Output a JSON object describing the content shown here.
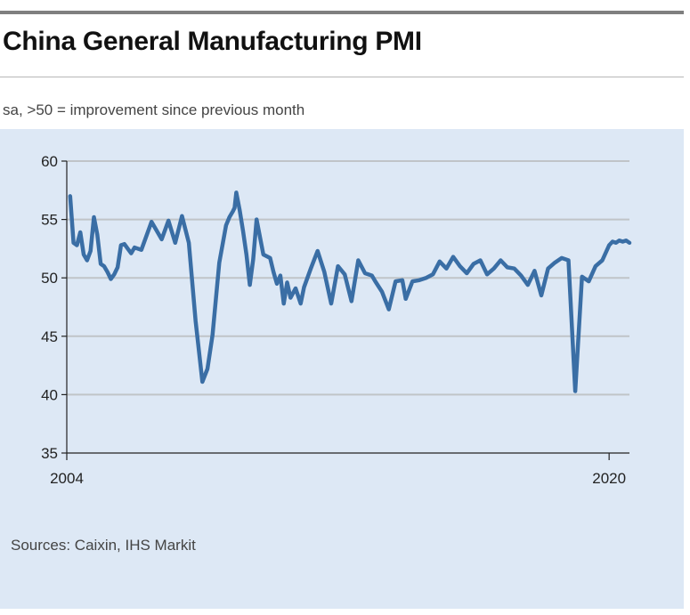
{
  "header": {
    "title": "China General Manufacturing PMI",
    "subtitle": "sa, >50 = improvement since previous month"
  },
  "footer": {
    "source": "Sources: Caixin, IHS Markit"
  },
  "colors": {
    "line": "#3a6ea5",
    "panel": "#dde8f5",
    "grid": "#c0c4c8",
    "axis": "#222222"
  },
  "chart_data": {
    "type": "line",
    "title": "China General Manufacturing PMI",
    "subtitle": "sa, >50 = improvement since previous month",
    "xlabel": "",
    "ylabel": "",
    "ylim": [
      35,
      60
    ],
    "yticks": [
      "60",
      "55",
      "50",
      "45",
      "40",
      "35"
    ],
    "ytick_values": [
      60,
      55,
      50,
      45,
      40,
      35
    ],
    "xtick_labels": [
      "2004",
      "2020"
    ],
    "xtick_values": [
      2004,
      2020
    ],
    "xlim": [
      2004,
      2020.6
    ],
    "grid": true,
    "series": [
      {
        "name": "China General Manufacturing PMI",
        "x": [
          2004.1,
          2004.2,
          2004.3,
          2004.4,
          2004.5,
          2004.6,
          2004.7,
          2004.8,
          2004.9,
          2005.0,
          2005.1,
          2005.2,
          2005.3,
          2005.4,
          2005.5,
          2005.6,
          2005.7,
          2005.8,
          2005.9,
          2006.0,
          2006.2,
          2006.5,
          2006.8,
          2007.0,
          2007.2,
          2007.4,
          2007.6,
          2007.8,
          2008.0,
          2008.15,
          2008.3,
          2008.5,
          2008.7,
          2008.8,
          2008.9,
          2008.95,
          2009.0,
          2009.1,
          2009.2,
          2009.3,
          2009.4,
          2009.5,
          2009.6,
          2009.8,
          2010.0,
          2010.1,
          2010.2,
          2010.3,
          2010.4,
          2010.5,
          2010.6,
          2010.75,
          2010.9,
          2011.0,
          2011.2,
          2011.4,
          2011.6,
          2011.8,
          2012.0,
          2012.2,
          2012.4,
          2012.6,
          2012.8,
          2013.0,
          2013.1,
          2013.3,
          2013.5,
          2013.7,
          2013.9,
          2014.0,
          2014.2,
          2014.4,
          2014.6,
          2014.8,
          2015.0,
          2015.2,
          2015.4,
          2015.6,
          2015.8,
          2016.0,
          2016.2,
          2016.4,
          2016.6,
          2016.8,
          2017.0,
          2017.2,
          2017.4,
          2017.6,
          2017.8,
          2018.0,
          2018.2,
          2018.4,
          2018.6,
          2018.8,
          2019.0,
          2019.2,
          2019.4,
          2019.6,
          2019.8,
          2020.0,
          2020.1,
          2020.2,
          2020.3,
          2020.4,
          2020.5,
          2020.6
        ],
        "values": [
          57.0,
          53.0,
          52.8,
          53.9,
          52.0,
          51.5,
          52.3,
          55.2,
          53.7,
          51.2,
          51.0,
          50.5,
          49.9,
          50.3,
          50.9,
          52.8,
          52.9,
          52.5,
          52.1,
          52.6,
          52.4,
          54.8,
          53.3,
          54.9,
          53.0,
          55.3,
          53.0,
          46.3,
          41.1,
          42.2,
          45.1,
          51.3,
          54.5,
          55.2,
          55.7,
          56.0,
          57.3,
          55.8,
          54.0,
          52.0,
          49.4,
          51.6,
          55.0,
          52.0,
          51.7,
          50.5,
          49.5,
          50.2,
          47.8,
          49.6,
          48.3,
          49.1,
          47.8,
          49.2,
          50.8,
          52.3,
          50.5,
          47.8,
          51.0,
          50.3,
          48.0,
          51.5,
          50.4,
          50.2,
          49.7,
          48.8,
          47.3,
          49.7,
          49.8,
          48.2,
          49.7,
          49.8,
          50.0,
          50.3,
          51.4,
          50.8,
          51.8,
          51.0,
          50.4,
          51.2,
          51.5,
          50.3,
          50.8,
          51.5,
          50.9,
          50.8,
          50.2,
          49.4,
          50.6,
          48.5,
          50.8,
          51.3,
          51.7,
          51.5,
          40.3,
          50.1,
          49.7,
          51.0,
          51.5,
          52.8,
          53.1,
          53.0,
          53.2,
          53.1,
          53.2,
          53.0
        ]
      }
    ]
  }
}
